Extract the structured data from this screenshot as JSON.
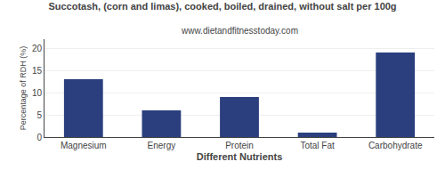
{
  "chart_data": {
    "type": "bar",
    "title": "Succotash, (corn and limas), cooked, boiled, drained, without salt per 100g",
    "subtitle": "www.dietandfitnesstoday.com",
    "xlabel": "Different Nutrients",
    "ylabel": "Percentage of RDH (%)",
    "categories": [
      "Magnesium",
      "Energy",
      "Protein",
      "Total Fat",
      "Carbohydrate"
    ],
    "values": [
      13,
      6,
      9,
      1,
      19
    ],
    "color": "#2b3f7e",
    "ylim": [
      0,
      22
    ],
    "yticks": [
      0,
      5,
      10,
      15,
      20
    ],
    "grid": true
  }
}
